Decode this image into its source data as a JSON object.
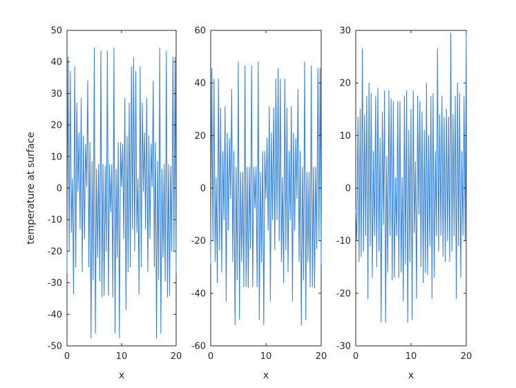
{
  "colors": {
    "line": "#3c86d8",
    "axes": "#262626",
    "background": "#ffffff"
  },
  "chart_data": [
    {
      "type": "line",
      "title": "",
      "xlabel": "x",
      "ylabel": "temperature at surface",
      "xlim": [
        0,
        20
      ],
      "ylim": [
        -50,
        50
      ],
      "xticks": [
        "0",
        "10",
        "20"
      ],
      "yticks": [
        "-50",
        "-40",
        "-30",
        "-20",
        "-10",
        "0",
        "10",
        "20",
        "30",
        "40",
        "50"
      ],
      "grid": false,
      "series": [
        {
          "x": [
            0,
            0.2,
            0.4,
            0.6,
            0.8,
            1.0,
            1.2,
            1.4,
            1.6,
            1.8,
            2.0,
            2.2,
            2.4,
            2.6,
            2.8,
            3.0,
            3.2,
            3.4,
            3.6,
            3.8,
            4.0,
            4.2,
            4.4,
            4.6,
            4.8,
            5.0,
            5.2,
            5.4,
            5.6,
            5.8,
            6.0,
            6.2,
            6.4,
            6.6,
            6.8,
            7.0,
            7.2,
            7.4,
            7.6,
            7.8,
            8.0,
            8.2,
            8.4,
            8.6,
            8.8,
            9.0,
            9.2,
            9.4,
            9.6,
            9.8,
            10.0,
            10.2,
            10.4,
            10.6,
            10.8,
            11.0,
            11.2,
            11.4,
            11.6,
            11.8,
            12.0,
            12.2,
            12.4,
            12.6,
            12.8,
            13.0,
            13.2,
            13.4,
            13.6,
            13.8,
            14.0,
            14.2,
            14.4,
            14.6,
            14.8,
            15.0,
            15.2,
            15.4,
            15.6,
            15.8,
            16.0,
            16.2,
            16.4,
            16.6,
            16.8,
            17.0,
            17.2,
            17.4,
            17.6,
            17.8,
            18.0,
            18.2,
            18.4,
            18.6,
            18.8,
            19.0,
            19.2,
            19.4,
            19.6,
            19.8,
            20.0
          ],
          "y": [
            -27,
            41.5,
            -20,
            37,
            -14,
            3,
            -33.5,
            38.5,
            -25,
            27,
            -1,
            17.5,
            -13,
            28.5,
            -26.5,
            16.5,
            -16,
            14,
            0.5,
            34,
            -25,
            14.5,
            -47.5,
            8.5,
            -29,
            44.5,
            -46,
            6,
            -22,
            7.5,
            -29.5,
            43.5,
            -34.5,
            7.5,
            -34,
            7,
            -20,
            43.5,
            -34,
            7.5,
            -7.5,
            7.5,
            -34.5,
            44.5,
            -46,
            6,
            -22,
            14.5,
            -47.5,
            14.5,
            0.5,
            14,
            -16,
            28.5,
            -38.5,
            16.5,
            -26.5,
            27,
            -25,
            38.5,
            -13,
            41.5,
            -20,
            37,
            -14,
            3,
            -33.5,
            38.5,
            -25,
            27,
            -1,
            17.5,
            -13,
            28.5,
            -26.5,
            16.5,
            -16,
            14,
            0.5,
            34,
            -25,
            14.5,
            -47.5,
            8.5,
            -29,
            44.5,
            -46,
            6,
            -22,
            7.5,
            -29.5,
            43.5,
            -34.5,
            7.5,
            -34,
            7,
            -20,
            41.5,
            -20,
            41.5,
            -27
          ]
        }
      ]
    },
    {
      "type": "line",
      "title": "",
      "xlabel": "x",
      "ylabel": "",
      "xlim": [
        0,
        20
      ],
      "ylim": [
        -60,
        60
      ],
      "xticks": [
        "0",
        "10",
        "20"
      ],
      "yticks": [
        "-60",
        "-40",
        "-20",
        "0",
        "20",
        "40",
        "60"
      ],
      "grid": false,
      "series": [
        {
          "x": [
            0,
            0.2,
            0.4,
            0.6,
            0.8,
            1.0,
            1.2,
            1.4,
            1.6,
            1.8,
            2.0,
            2.2,
            2.4,
            2.6,
            2.8,
            3.0,
            3.2,
            3.4,
            3.6,
            3.8,
            4.0,
            4.2,
            4.4,
            4.6,
            4.8,
            5.0,
            5.2,
            5.4,
            5.6,
            5.8,
            6.0,
            6.2,
            6.4,
            6.6,
            6.8,
            7.0,
            7.2,
            7.4,
            7.6,
            7.8,
            8.0,
            8.2,
            8.4,
            8.6,
            8.8,
            9.0,
            9.2,
            9.4,
            9.6,
            9.8,
            10.0,
            10.2,
            10.4,
            10.6,
            10.8,
            11.0,
            11.2,
            11.4,
            11.6,
            11.8,
            12.0,
            12.2,
            12.4,
            12.6,
            12.8,
            13.0,
            13.2,
            13.4,
            13.6,
            13.8,
            14.0,
            14.2,
            14.4,
            14.6,
            14.8,
            15.0,
            15.2,
            15.4,
            15.6,
            15.8,
            16.0,
            16.2,
            16.4,
            16.6,
            16.8,
            17.0,
            17.2,
            17.4,
            17.6,
            17.8,
            18.0,
            18.2,
            18.4,
            18.6,
            18.8,
            19.0,
            19.2,
            19.4,
            19.6,
            19.8,
            20.0
          ],
          "y": [
            -29,
            45.5,
            -20,
            41.5,
            -28,
            4,
            -36,
            41.5,
            -23.5,
            30.5,
            -32,
            14,
            -12,
            31,
            -43,
            21,
            -16,
            19,
            -4,
            37.5,
            -28,
            14,
            -52,
            8,
            -35,
            48,
            -50,
            6,
            -28,
            6,
            -37.5,
            46.5,
            -37.5,
            8,
            -38,
            8,
            -23,
            46.5,
            -37.5,
            8,
            -7.5,
            8,
            -37.5,
            48,
            -50,
            6,
            -28,
            14,
            -52,
            14,
            -4,
            19,
            -16,
            31,
            -43,
            21,
            -12,
            30.5,
            -23.5,
            41.5,
            -12,
            45.5,
            -20,
            41.5,
            -28,
            4,
            -36,
            41.5,
            -23.5,
            30.5,
            -32,
            14,
            -12,
            31,
            -43,
            21,
            -16,
            19,
            -4,
            37.5,
            -28,
            14,
            -52,
            8,
            -35,
            48,
            -50,
            6,
            -28,
            6,
            -37.5,
            46.5,
            -37.5,
            8,
            -38,
            8,
            -23,
            45.5,
            -20,
            45.5,
            -29
          ]
        }
      ]
    },
    {
      "type": "line",
      "title": "",
      "xlabel": "x",
      "ylabel": "",
      "xlim": [
        0,
        20
      ],
      "ylim": [
        -30,
        30
      ],
      "xticks": [
        "0",
        "10",
        "20"
      ],
      "yticks": [
        "-30",
        "-20",
        "-10",
        "0",
        "10",
        "20",
        "30"
      ],
      "grid": false,
      "series": [
        {
          "x": [
            0,
            0.2,
            0.4,
            0.6,
            0.8,
            1.0,
            1.2,
            1.4,
            1.6,
            1.8,
            2.0,
            2.2,
            2.4,
            2.6,
            2.8,
            3.0,
            3.2,
            3.4,
            3.6,
            3.8,
            4.0,
            4.2,
            4.4,
            4.6,
            4.8,
            5.0,
            5.2,
            5.4,
            5.6,
            5.8,
            6.0,
            6.2,
            6.4,
            6.6,
            6.8,
            7.0,
            7.2,
            7.4,
            7.6,
            7.8,
            8.0,
            8.2,
            8.4,
            8.6,
            8.8,
            9.0,
            9.2,
            9.4,
            9.6,
            9.8,
            10.0,
            10.2,
            10.4,
            10.6,
            10.8,
            11.0,
            11.2,
            11.4,
            11.6,
            11.8,
            12.0,
            12.2,
            12.4,
            12.6,
            12.8,
            13.0,
            13.2,
            13.4,
            13.6,
            13.8,
            14.0,
            14.2,
            14.4,
            14.6,
            14.8,
            15.0,
            15.2,
            15.4,
            15.6,
            15.8,
            16.0,
            16.2,
            16.4,
            16.6,
            16.8,
            17.0,
            17.2,
            17.4,
            17.6,
            17.8,
            18.0,
            18.2,
            18.4,
            18.6,
            18.8,
            19.0,
            19.2,
            19.4,
            19.6,
            19.8,
            20.0
          ],
          "y": [
            -4,
            -10,
            13.5,
            -14,
            15,
            -13,
            26.5,
            -12,
            14,
            -9,
            17.5,
            -21,
            20,
            -11,
            18,
            -17,
            7,
            -9,
            17.5,
            -15,
            19,
            -12,
            9.5,
            -25.5,
            14.5,
            -7,
            18.5,
            -25.5,
            6,
            -16,
            18.5,
            -9,
            17,
            -17.5,
            16.5,
            -17,
            2,
            -9,
            16.5,
            -17,
            16.5,
            -16,
            2,
            -21.5,
            17.5,
            -14.5,
            18.5,
            -25.5,
            11,
            -14,
            15,
            -25,
            18.5,
            -8.5,
            5,
            -21,
            17.5,
            -5,
            16.5,
            -15,
            14.5,
            -18,
            11,
            -16,
            20,
            -16.5,
            10,
            -11,
            17.5,
            -21,
            18,
            -17,
            7,
            -9,
            26.5,
            -12,
            14,
            -9,
            17.5,
            -13,
            13.5,
            -14,
            15,
            -10,
            13.5,
            -14,
            29.5,
            -12,
            14,
            -9,
            17.5,
            -21,
            20,
            -11,
            18,
            -17,
            7,
            -9,
            17.5,
            -10,
            29.5
          ]
        }
      ]
    }
  ]
}
